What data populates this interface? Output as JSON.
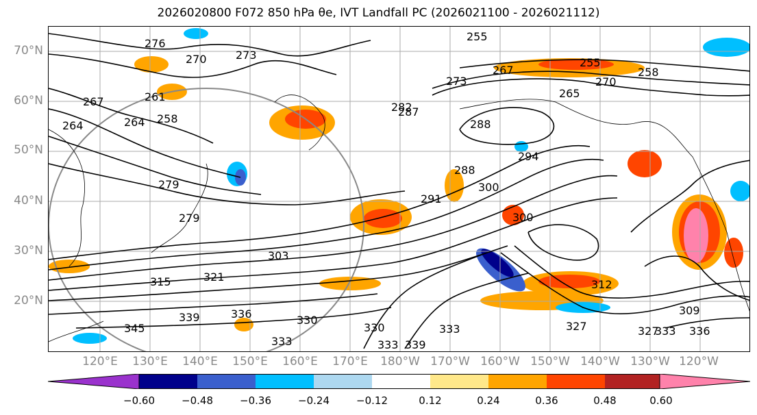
{
  "title": "2026020800 F072 850 hPa θe, IVT Landfall PC (2026021100 - 2026021112)",
  "lat_labels": [
    "70°N",
    "60°N",
    "50°N",
    "40°N",
    "30°N",
    "20°N"
  ],
  "lon_labels": [
    "120°E",
    "130°E",
    "140°E",
    "150°E",
    "160°E",
    "170°E",
    "180°W",
    "170°W",
    "160°W",
    "150°W",
    "140°W",
    "130°W",
    "120°W"
  ],
  "contour_labels": [
    "276",
    "270",
    "273",
    "267",
    "261",
    "258",
    "264",
    "255",
    "264",
    "282",
    "287",
    "288",
    "273",
    "267",
    "255",
    "258",
    "270",
    "265",
    "279",
    "279",
    "294",
    "288",
    "291",
    "300",
    "300",
    "303",
    "315",
    "321",
    "336",
    "330",
    "333",
    "330",
    "333",
    "339",
    "345",
    "339",
    "327",
    "312",
    "309",
    "336",
    "333",
    "327",
    "333"
  ],
  "colorbar": {
    "ticks": [
      "−0.60",
      "−0.48",
      "−0.36",
      "−0.24",
      "−0.12",
      "0.12",
      "0.24",
      "0.36",
      "0.48",
      "0.60"
    ],
    "colors": [
      "#9a32cd",
      "#00008b",
      "#3a5fcd",
      "#00bfff",
      "#add8f0",
      "#ffffff",
      "#ffe88a",
      "#ffa500",
      "#ff4500",
      "#b22222",
      "#ff82ab"
    ]
  }
}
